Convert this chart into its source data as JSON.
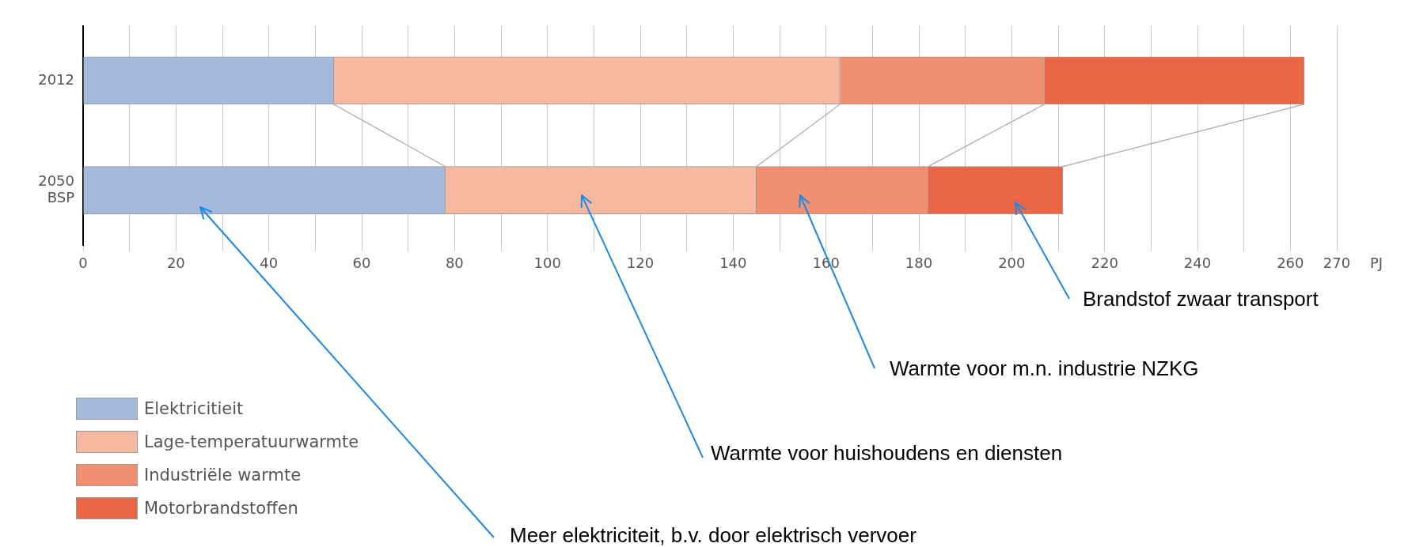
{
  "chart_data": {
    "type": "bar",
    "orientation": "horizontal",
    "stacked": true,
    "categories": [
      "2012",
      "2050 BSP"
    ],
    "series": [
      {
        "name": "Elektricitieit",
        "color": "#a4b9dc",
        "values": [
          54,
          78
        ]
      },
      {
        "name": "Lage-temperatuurwarmte",
        "color": "#f7b8a0",
        "values": [
          109,
          67
        ]
      },
      {
        "name": "Industriële warmte",
        "color": "#f09070",
        "values": [
          44,
          37
        ]
      },
      {
        "name": "Motorbrandstoffen",
        "color": "#eb6644",
        "values": [
          56,
          29
        ]
      }
    ],
    "xlabel": "PJ",
    "xlim": [
      0,
      270
    ],
    "xticks": [
      0,
      {
        "value": 10,
        "label": null
      },
      20,
      {
        "value": 30,
        "label": null
      },
      40,
      {
        "value": 50,
        "label": null
      },
      60,
      {
        "value": 70,
        "label": null
      },
      80,
      {
        "value": 90,
        "label": null
      },
      100,
      {
        "value": 110,
        "label": null
      },
      120,
      {
        "value": 130,
        "label": null
      },
      140,
      {
        "value": 150,
        "label": null
      },
      160,
      {
        "value": 170,
        "label": null
      },
      180,
      {
        "value": 190,
        "label": null
      },
      200,
      {
        "value": 210,
        "label": null
      },
      220,
      {
        "value": 230,
        "label": null
      },
      240,
      {
        "value": 250,
        "label": null
      },
      260,
      270
    ],
    "grid": "x",
    "legend": "bottom left",
    "annotations": [
      "Brandstof zwaar transport",
      "Warmte voor m.n. industrie NZKG",
      "Warmte voor huishoudens en diensten",
      "Meer elektriciteit, b.v. door elektrisch vervoer"
    ]
  }
}
